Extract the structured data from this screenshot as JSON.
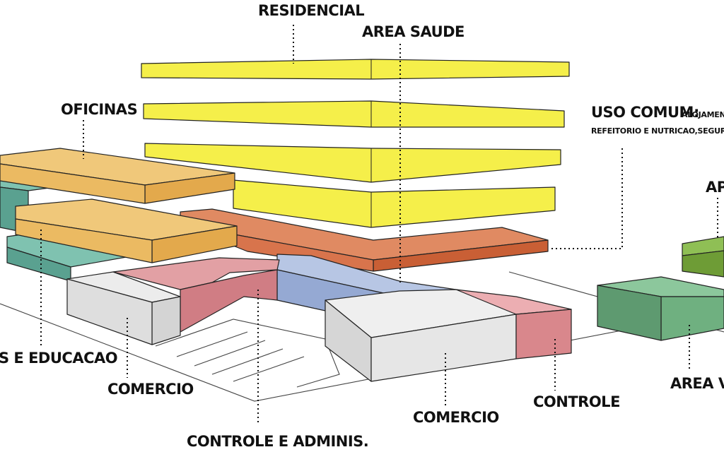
{
  "colors": {
    "residential": "#f5ef4a",
    "workshops": "#f0c46e",
    "common_use": "#d8744c",
    "health": "#a8b8d8",
    "commerce": "#dcdcdc",
    "control": "#d9878c",
    "education": "#6fb2a0",
    "green_area": "#78b78a",
    "support": "#7aa83e"
  },
  "labels": {
    "residencial": "RESIDENCIAL",
    "area_saude": "AREA SAUDE",
    "oficinas": "OFICINAS",
    "uso_comum_title": "USO COMUM:",
    "uso_comum_line1_rest": "ALOJAMENT",
    "uso_comum_line2": "REFEITORIO E NUTRICAO,SEGURANC",
    "apoio_partial": "AP",
    "educacao_partial": "S E EDUCACAO",
    "comercio_left": "COMERCIO",
    "controle_adminis": "CONTROLE E ADMINIS.",
    "comercio_right": "COMERCIO",
    "controle_right": "CONTROLE",
    "area_verde_partial": "AREA V"
  }
}
